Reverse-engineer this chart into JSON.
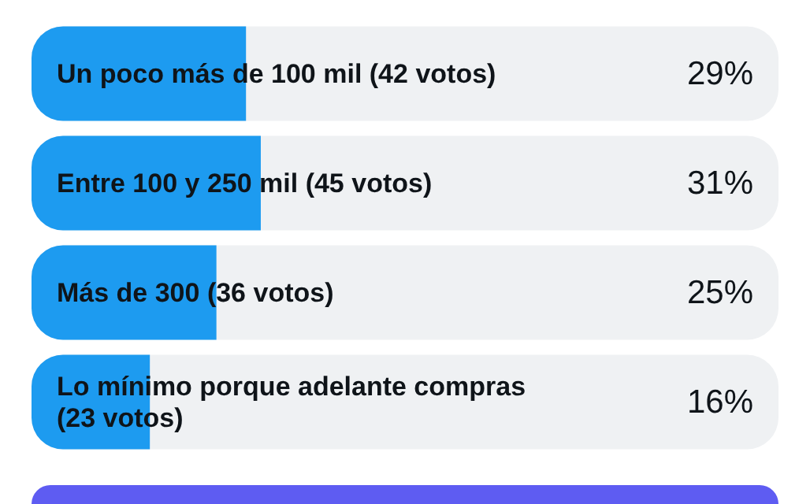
{
  "chart_data": {
    "type": "bar",
    "orientation": "horizontal",
    "categories": [
      "Un poco más de 100 mil (42 votos)",
      "Entre 100 y 250 mil (45 votos)",
      "Más de 300 (36 votos)",
      "Lo mínimo porque adelante compras (23 votos)"
    ],
    "values": [
      29,
      31,
      25,
      16
    ],
    "value_labels": [
      "29%",
      "31%",
      "25%",
      "16%"
    ],
    "color": "#1d9bf0"
  }
}
